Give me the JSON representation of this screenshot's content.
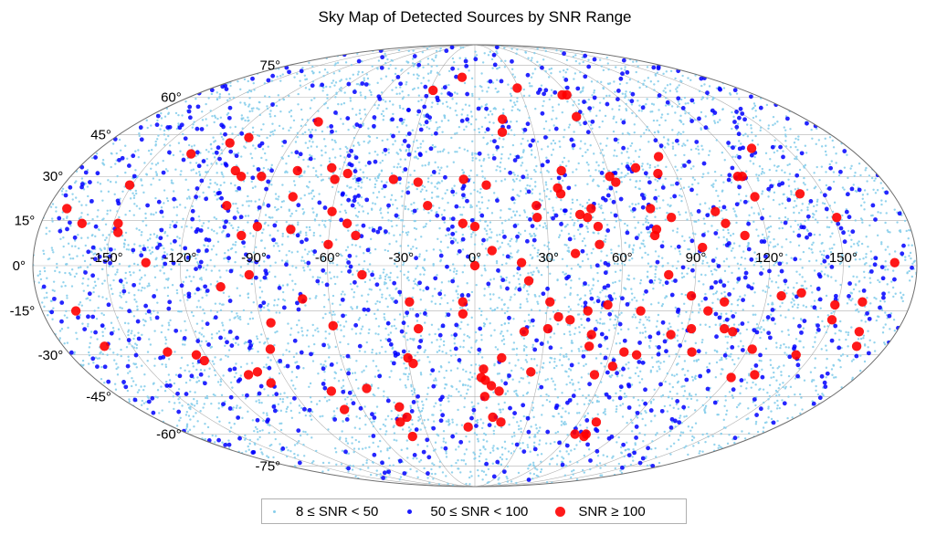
{
  "chart_data": {
    "type": "scatter",
    "projection": "mollweide",
    "title": "Sky Map of Detected Sources by SNR Range",
    "xlabel": "",
    "ylabel": "",
    "xlim": [
      -180,
      180
    ],
    "ylim": [
      -90,
      90
    ],
    "grid": true,
    "legend_position": "bottom-center",
    "xtick_labels": [
      "-150°",
      "-120°",
      "-90°",
      "-60°",
      "-30°",
      "0°",
      "30°",
      "60°",
      "90°",
      "120°",
      "150°"
    ],
    "xtick_values": [
      -150,
      -120,
      -90,
      -60,
      -30,
      0,
      30,
      60,
      90,
      120,
      150
    ],
    "ytick_labels": [
      "-75°",
      "-60°",
      "-45°",
      "-30°",
      "-15°",
      "0°",
      "15°",
      "30°",
      "45°",
      "60°",
      "75°"
    ],
    "ytick_values": [
      -75,
      -60,
      -45,
      -30,
      -15,
      0,
      15,
      30,
      45,
      60,
      75
    ],
    "series": [
      {
        "name": "8 ≤ SNR < 50",
        "color": "#87CEEB",
        "marker": "dot-small",
        "count": 6000,
        "distribution": "uniform on sphere"
      },
      {
        "name": "50 ≤ SNR < 100",
        "color": "#0000FF",
        "marker": "dot-medium",
        "count": 1000,
        "distribution": "uniform on sphere"
      },
      {
        "name": "SNR ≥ 100",
        "color": "#FF0000",
        "marker": "dot-large",
        "points": [
          {
            "lon": -172,
            "lat": 19
          },
          {
            "lon": -163,
            "lat": 14
          },
          {
            "lon": -166,
            "lat": -15
          },
          {
            "lon": -162,
            "lat": -27
          },
          {
            "lon": -151,
            "lat": 27
          },
          {
            "lon": -148,
            "lat": 14
          },
          {
            "lon": -147,
            "lat": 11
          },
          {
            "lon": -134,
            "lat": 1
          },
          {
            "lon": -134,
            "lat": 38
          },
          {
            "lon": -136,
            "lat": -29
          },
          {
            "lon": -124,
            "lat": -30
          },
          {
            "lon": -122,
            "lat": -32
          },
          {
            "lon": -120,
            "lat": 42
          },
          {
            "lon": -113,
            "lat": 44
          },
          {
            "lon": -108,
            "lat": 32
          },
          {
            "lon": -104,
            "lat": 30
          },
          {
            "lon": -105,
            "lat": 20
          },
          {
            "lon": -104,
            "lat": -7
          },
          {
            "lon": -106,
            "lat": -37
          },
          {
            "lon": -101,
            "lat": -36
          },
          {
            "lon": -98,
            "lat": -40
          },
          {
            "lon": -95,
            "lat": 30
          },
          {
            "lon": -96,
            "lat": 10
          },
          {
            "lon": -90,
            "lat": 13
          },
          {
            "lon": -92,
            "lat": -3
          },
          {
            "lon": -90,
            "lat": -28
          },
          {
            "lon": -86,
            "lat": -19
          },
          {
            "lon": -84,
            "lat": 50
          },
          {
            "lon": -80,
            "lat": 32
          },
          {
            "lon": -78,
            "lat": 23
          },
          {
            "lon": -76,
            "lat": 12
          },
          {
            "lon": -71,
            "lat": -11
          },
          {
            "lon": -71,
            "lat": -43
          },
          {
            "lon": -70,
            "lat": -50
          },
          {
            "lon": -65,
            "lat": 33
          },
          {
            "lon": -62,
            "lat": 29
          },
          {
            "lon": -60,
            "lat": 18
          },
          {
            "lon": -60,
            "lat": 7
          },
          {
            "lon": -60,
            "lat": -20
          },
          {
            "lon": -57,
            "lat": 31
          },
          {
            "lon": -53,
            "lat": 14
          },
          {
            "lon": -53,
            "lat": -42
          },
          {
            "lon": -49,
            "lat": 10
          },
          {
            "lon": -46,
            "lat": -3
          },
          {
            "lon": -43,
            "lat": -55
          },
          {
            "lon": -40,
            "lat": -61
          },
          {
            "lon": -40,
            "lat": -49
          },
          {
            "lon": -38,
            "lat": -53
          },
          {
            "lon": -36,
            "lat": 29
          },
          {
            "lon": -30,
            "lat": -31
          },
          {
            "lon": -28,
            "lat": 63
          },
          {
            "lon": -28,
            "lat": -33
          },
          {
            "lon": -27,
            "lat": -12
          },
          {
            "lon": -25,
            "lat": 28
          },
          {
            "lon": -24,
            "lat": -21
          },
          {
            "lon": -20,
            "lat": 20
          },
          {
            "lon": -10,
            "lat": 69
          },
          {
            "lon": -5,
            "lat": 29
          },
          {
            "lon": -5,
            "lat": 14
          },
          {
            "lon": -5,
            "lat": -12
          },
          {
            "lon": -5,
            "lat": -16
          },
          {
            "lon": -4,
            "lat": -57
          },
          {
            "lon": 0,
            "lat": 13
          },
          {
            "lon": 0,
            "lat": 0
          },
          {
            "lon": 3,
            "lat": -38
          },
          {
            "lon": 5,
            "lat": -39
          },
          {
            "lon": 4,
            "lat": -35
          },
          {
            "lon": 5,
            "lat": -45
          },
          {
            "lon": 5,
            "lat": 27
          },
          {
            "lon": 7,
            "lat": 5
          },
          {
            "lon": 8,
            "lat": -41
          },
          {
            "lon": 10,
            "lat": -53
          },
          {
            "lon": 12,
            "lat": -43
          },
          {
            "lon": 12,
            "lat": -31
          },
          {
            "lon": 14,
            "lat": 46
          },
          {
            "lon": 15,
            "lat": 51
          },
          {
            "lon": 15,
            "lat": -55
          },
          {
            "lon": 19,
            "lat": 1
          },
          {
            "lon": 21,
            "lat": -22
          },
          {
            "lon": 22,
            "lat": -5
          },
          {
            "lon": 26,
            "lat": 20
          },
          {
            "lon": 26,
            "lat": 16
          },
          {
            "lon": 26,
            "lat": -36
          },
          {
            "lon": 29,
            "lat": 64
          },
          {
            "lon": 31,
            "lat": -12
          },
          {
            "lon": 31,
            "lat": -21
          },
          {
            "lon": 35,
            "lat": -17
          },
          {
            "lon": 36,
            "lat": 26
          },
          {
            "lon": 37,
            "lat": 24
          },
          {
            "lon": 39,
            "lat": 32
          },
          {
            "lon": 40,
            "lat": -18
          },
          {
            "lon": 41,
            "lat": 4
          },
          {
            "lon": 44,
            "lat": 17
          },
          {
            "lon": 47,
            "lat": -15
          },
          {
            "lon": 47,
            "lat": 16
          },
          {
            "lon": 49,
            "lat": 19
          },
          {
            "lon": 50,
            "lat": -27
          },
          {
            "lon": 50,
            "lat": -23
          },
          {
            "lon": 51,
            "lat": 7
          },
          {
            "lon": 51,
            "lat": 13
          },
          {
            "lon": 55,
            "lat": -13
          },
          {
            "lon": 56,
            "lat": 61
          },
          {
            "lon": 56,
            "lat": 52
          },
          {
            "lon": 56,
            "lat": -37
          },
          {
            "lon": 59,
            "lat": 61
          },
          {
            "lon": 60,
            "lat": 30
          },
          {
            "lon": 62,
            "lat": 28
          },
          {
            "lon": 63,
            "lat": -34
          },
          {
            "lon": 63,
            "lat": -60
          },
          {
            "lon": 66,
            "lat": -29
          },
          {
            "lon": 69,
            "lat": -15
          },
          {
            "lon": 70,
            "lat": -61
          },
          {
            "lon": 70,
            "lat": -55
          },
          {
            "lon": 70,
            "lat": -60
          },
          {
            "lon": 72,
            "lat": -30
          },
          {
            "lon": 73,
            "lat": 33
          },
          {
            "lon": 74,
            "lat": 10
          },
          {
            "lon": 74,
            "lat": 19
          },
          {
            "lon": 75,
            "lat": 12
          },
          {
            "lon": 79,
            "lat": -3
          },
          {
            "lon": 82,
            "lat": 31
          },
          {
            "lon": 82,
            "lat": 16
          },
          {
            "lon": 84,
            "lat": -23
          },
          {
            "lon": 86,
            "lat": 37
          },
          {
            "lon": 89,
            "lat": -10
          },
          {
            "lon": 92,
            "lat": -21
          },
          {
            "lon": 93,
            "lat": 6
          },
          {
            "lon": 96,
            "lat": -29
          },
          {
            "lon": 97,
            "lat": -15
          },
          {
            "lon": 101,
            "lat": 18
          },
          {
            "lon": 103,
            "lat": -12
          },
          {
            "lon": 104,
            "lat": 14
          },
          {
            "lon": 106,
            "lat": -21
          },
          {
            "lon": 110,
            "lat": -22
          },
          {
            "lon": 111,
            "lat": 10
          },
          {
            "lon": 117,
            "lat": 30
          },
          {
            "lon": 119,
            "lat": 30
          },
          {
            "lon": 120,
            "lat": 23
          },
          {
            "lon": 121,
            "lat": -38
          },
          {
            "lon": 122,
            "lat": -28
          },
          {
            "lon": 126,
            "lat": -10
          },
          {
            "lon": 131,
            "lat": -37
          },
          {
            "lon": 133,
            "lat": 40
          },
          {
            "lon": 134,
            "lat": -9
          },
          {
            "lon": 140,
            "lat": 24
          },
          {
            "lon": 143,
            "lat": -30
          },
          {
            "lon": 149,
            "lat": -13
          },
          {
            "lon": 150,
            "lat": -18
          },
          {
            "lon": 151,
            "lat": 16
          },
          {
            "lon": 160,
            "lat": -12
          },
          {
            "lon": 164,
            "lat": -22
          },
          {
            "lon": 167,
            "lat": -27
          },
          {
            "lon": 171,
            "lat": 1
          }
        ]
      }
    ]
  },
  "legend": {
    "items": [
      {
        "label": "8 ≤ SNR < 50",
        "color": "#87CEEB"
      },
      {
        "label": "50 ≤ SNR < 100",
        "color": "#0000FF"
      },
      {
        "label": "SNR ≥ 100",
        "color": "#FF0000"
      }
    ]
  }
}
